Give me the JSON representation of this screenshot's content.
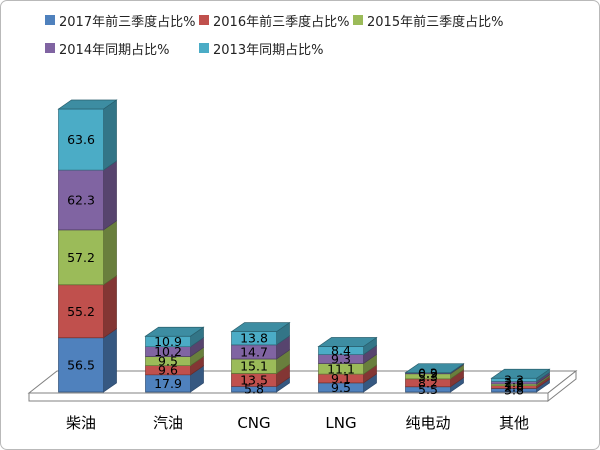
{
  "chart_data": {
    "type": "bar",
    "variant": "3d-stacked-column",
    "title": "",
    "xlabel": "",
    "ylabel": "",
    "legend_position": "top",
    "value_axis_visible": false,
    "grid": false,
    "data_labels": true,
    "background_color": "#ffffff",
    "floor_outline_color": "#808080",
    "categories": [
      "柴油",
      "汽油",
      "CNG",
      "LNG",
      "纯电动",
      "其他"
    ],
    "series": [
      {
        "name": "2017年前三季度占比%",
        "color": "#4f81bd",
        "values": [
          56.5,
          17.9,
          5.8,
          9.5,
          5.5,
          3.8
        ]
      },
      {
        "name": "2016年前三季度占比%",
        "color": "#c0504d",
        "values": [
          55.2,
          9.6,
          13.5,
          9.1,
          8.2,
          2.8
        ]
      },
      {
        "name": "2015年前三季度占比%",
        "color": "#9bbb59",
        "values": [
          57.2,
          9.5,
          15.1,
          11.1,
          5.3,
          1.8
        ]
      },
      {
        "name": "2014年同期占比%",
        "color": "#8064a2",
        "values": [
          62.3,
          10.2,
          14.7,
          9.3,
          0.9,
          2.6
        ]
      },
      {
        "name": "2013年同期占比%",
        "color": "#4bacc6",
        "values": [
          63.6,
          10.9,
          13.8,
          8.4,
          0.2,
          3.3
        ]
      }
    ]
  }
}
